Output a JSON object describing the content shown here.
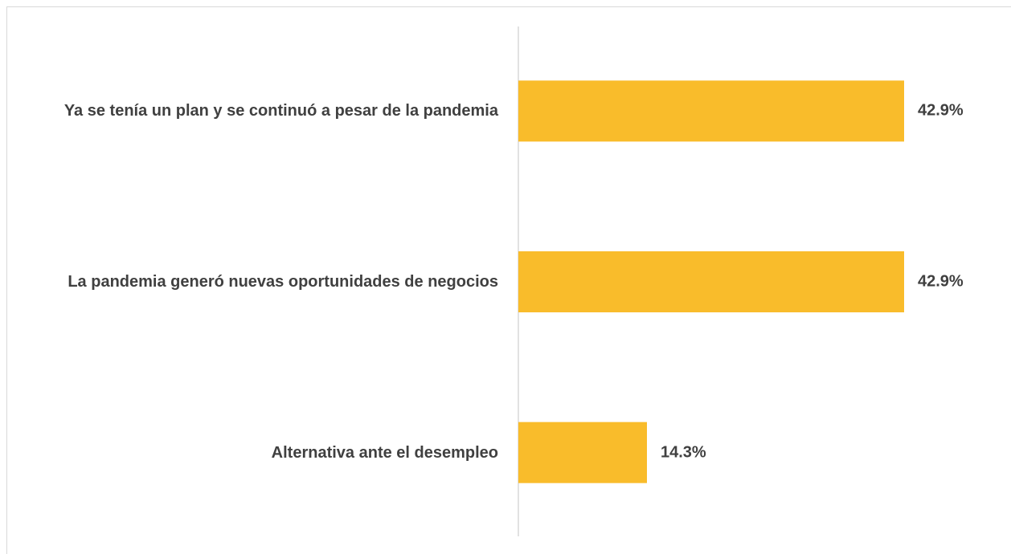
{
  "chart_data": {
    "type": "bar",
    "orientation": "horizontal",
    "categories": [
      "Ya se tenía un plan y se continuó a pesar de la pandemia",
      "La pandemia generó nuevas oportunidades de negocios",
      "Alternativa ante el desempleo"
    ],
    "values": [
      42.9,
      42.9,
      14.3
    ],
    "value_labels": [
      "42.9%",
      "42.9%",
      "14.3%"
    ],
    "color": "#f9bc2b"
  }
}
